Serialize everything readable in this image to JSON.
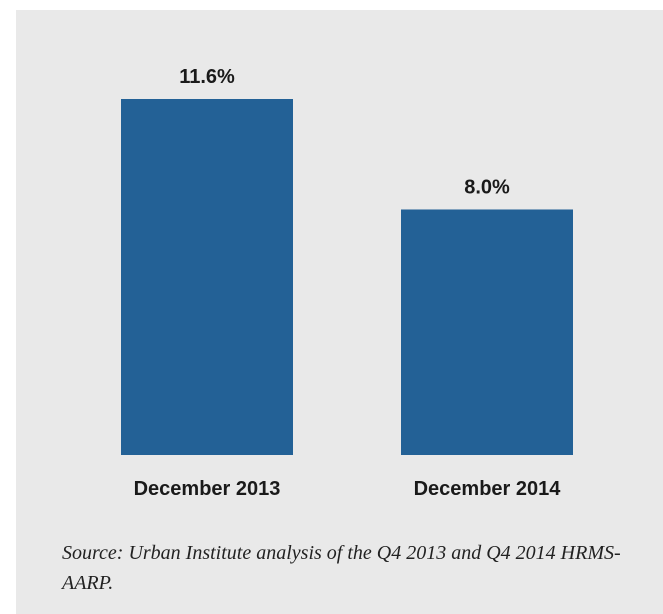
{
  "chart_data": {
    "type": "bar",
    "categories": [
      "December 2013",
      "December 2014"
    ],
    "values": [
      11.6,
      8.0
    ],
    "value_labels": [
      "11.6%",
      "8.0%"
    ],
    "title": "",
    "xlabel": "",
    "ylabel": "",
    "ylim": [
      0,
      11.6
    ],
    "grid": false,
    "bar_color": "#236196",
    "background_color": "#e9e9e9"
  },
  "source_note": "Source: Urban Institute analysis of the Q4 2013 and Q4 2014 HRMS-AARP."
}
